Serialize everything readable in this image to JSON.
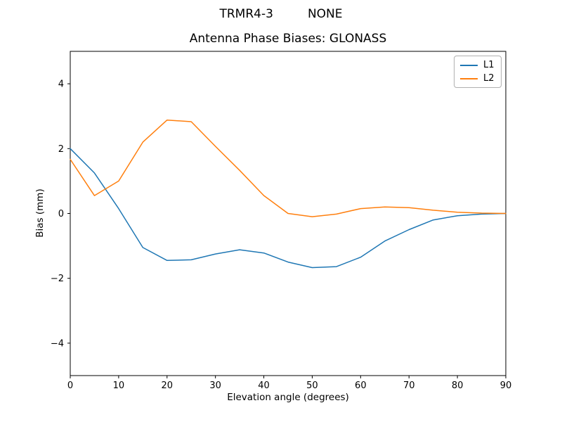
{
  "figure": {
    "suptitle_left": "TRMR4-3",
    "suptitle_right": "NONE"
  },
  "chart_data": {
    "type": "line",
    "title": "Antenna Phase Biases: GLONASS",
    "xlabel": "Elevation angle (degrees)",
    "ylabel": "Bias (mm)",
    "xlim": [
      0,
      90
    ],
    "ylim": [
      -5,
      5
    ],
    "xticks": [
      0,
      10,
      20,
      30,
      40,
      50,
      60,
      70,
      80,
      90
    ],
    "yticks": {
      "values": [
        -4,
        -2,
        0,
        2,
        4
      ],
      "labels": [
        "−4",
        "−2",
        "0",
        "2",
        "4"
      ]
    },
    "grid": false,
    "legend_position": "upper right",
    "frame_color": "#000000",
    "line_width": 1.5,
    "x": [
      0,
      5,
      10,
      15,
      20,
      25,
      30,
      35,
      40,
      45,
      50,
      55,
      60,
      65,
      70,
      75,
      80,
      85,
      90
    ],
    "series": [
      {
        "name": "L1",
        "color": "#1f77b4",
        "values": [
          2.0,
          1.25,
          0.15,
          -1.05,
          -1.45,
          -1.43,
          -1.25,
          -1.12,
          -1.22,
          -1.5,
          -1.67,
          -1.64,
          -1.35,
          -0.85,
          -0.5,
          -0.2,
          -0.07,
          -0.02,
          0.0
        ]
      },
      {
        "name": "L2",
        "color": "#ff7f0e",
        "values": [
          1.67,
          0.55,
          1.0,
          2.2,
          2.88,
          2.83,
          2.07,
          1.33,
          0.55,
          0.0,
          -0.1,
          -0.02,
          0.15,
          0.2,
          0.18,
          0.1,
          0.04,
          0.01,
          0.0
        ]
      }
    ]
  }
}
